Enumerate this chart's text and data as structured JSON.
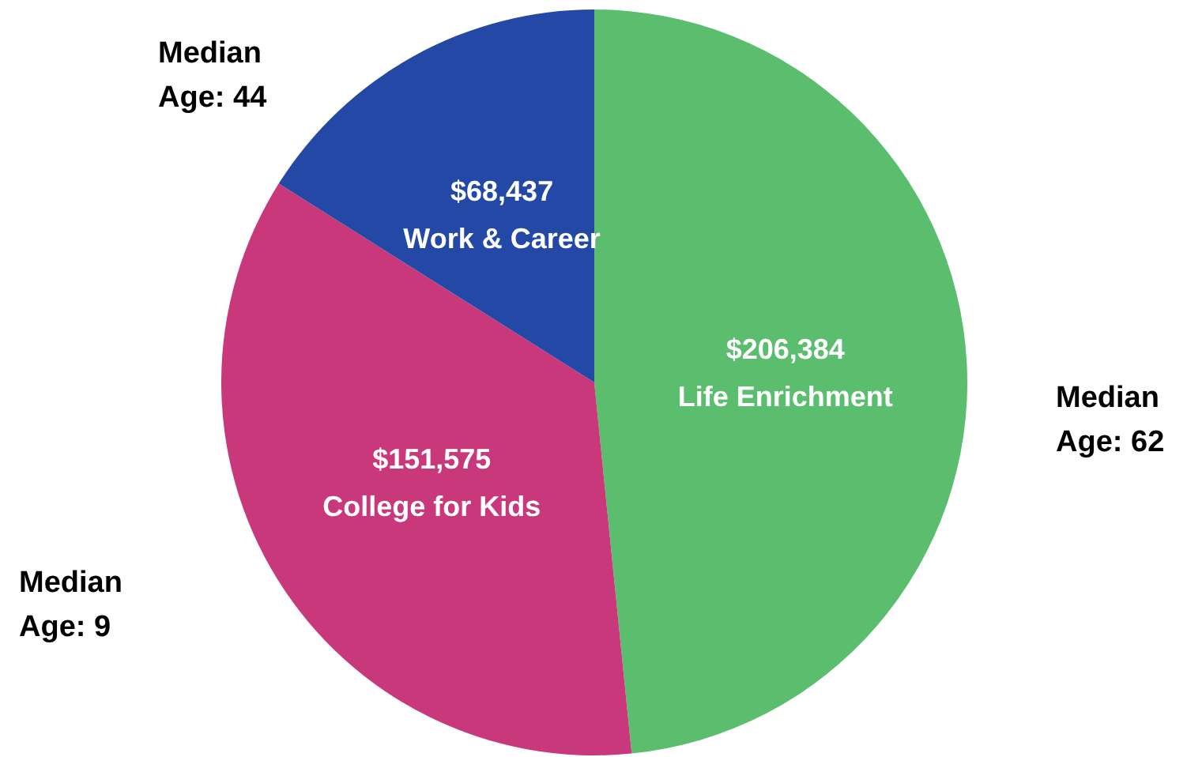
{
  "chart_data": {
    "type": "pie",
    "categories": [
      "Life Enrichment",
      "College for Kids",
      "Work & Career"
    ],
    "values": [
      206384,
      151575,
      68437
    ],
    "value_labels": [
      "$206,384",
      "$151,575",
      "$68,437"
    ],
    "colors": [
      "#5bbd6e",
      "#c9387a",
      "#2448a5"
    ],
    "annotations": [
      "Median Age: 62",
      "Median Age: 9",
      "Median Age: 44"
    ]
  }
}
